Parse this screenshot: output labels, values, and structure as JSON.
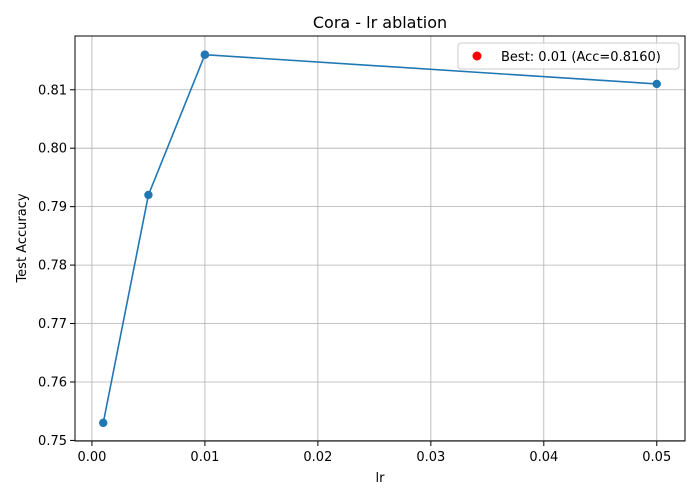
{
  "chart_data": {
    "type": "line",
    "title": "Cora - lr ablation",
    "xlabel": "lr",
    "ylabel": "Test Accuracy",
    "x": [
      0.001,
      0.005,
      0.01,
      0.05
    ],
    "series": [
      {
        "values": [
          0.753,
          0.792,
          0.816,
          0.811
        ],
        "color": "#1f77b4"
      }
    ],
    "xlim": [
      -0.0015,
      0.0525
    ],
    "ylim": [
      0.7499,
      0.8192
    ],
    "xticks": [
      0.0,
      0.01,
      0.02,
      0.03,
      0.04,
      0.05
    ],
    "xtick_labels": [
      "0.00",
      "0.01",
      "0.02",
      "0.03",
      "0.04",
      "0.05"
    ],
    "yticks": [
      0.75,
      0.76,
      0.77,
      0.78,
      0.79,
      0.8,
      0.81
    ],
    "ytick_labels": [
      "0.75",
      "0.76",
      "0.77",
      "0.78",
      "0.79",
      "0.80",
      "0.81"
    ],
    "grid": true,
    "highlight": {
      "x": 0.01,
      "y": 0.816,
      "color": "#ff0000",
      "label": "Best: 0.01 (Acc=0.8160)"
    },
    "legend_position": "top-right"
  }
}
